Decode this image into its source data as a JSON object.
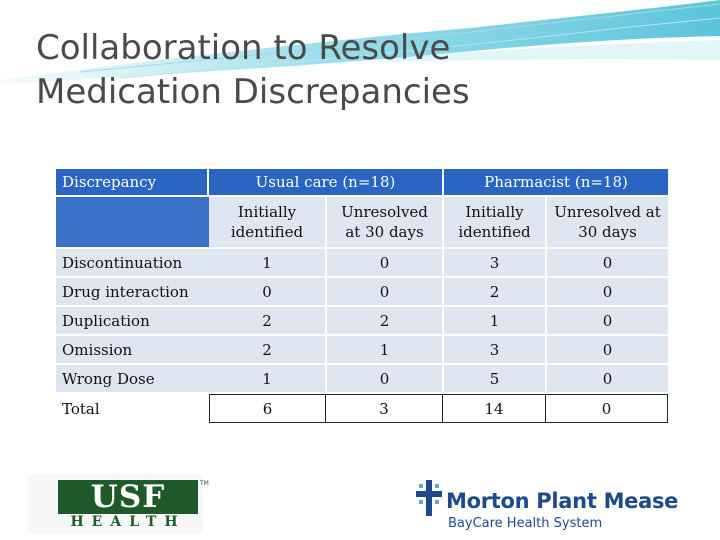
{
  "slide": {
    "title_line1": "Collaboration to Resolve",
    "title_line2": "Medication Discrepancies",
    "accent_color": "#2a65c4",
    "swoosh_color": "#7fd3e3"
  },
  "table": {
    "col_header": "Discrepancy",
    "groups": [
      "Usual care (n=18)",
      "Pharmacist (n=18)"
    ],
    "subheaders": [
      "Initially identified",
      "Unresolved at 30 days",
      "Initially identified",
      "Unresolved at 30 days"
    ],
    "rows": [
      {
        "label": "Discontinuation",
        "values": [
          "1",
          "0",
          "3",
          "0"
        ]
      },
      {
        "label": "Drug interaction",
        "values": [
          "0",
          "0",
          "2",
          "0"
        ]
      },
      {
        "label": "Duplication",
        "values": [
          "2",
          "2",
          "1",
          "0"
        ]
      },
      {
        "label": "Omission",
        "values": [
          "2",
          "1",
          "3",
          "0"
        ]
      },
      {
        "label": "Wrong Dose",
        "values": [
          "1",
          "0",
          "5",
          "0"
        ]
      },
      {
        "label": "Total",
        "values": [
          "6",
          "3",
          "14",
          "0"
        ]
      }
    ]
  },
  "logos": {
    "usf_letters": "USF",
    "usf_health": "HEALTH",
    "usf_tm": "TM",
    "usf_color": "#1e5a2a",
    "mpm_name": "Morton Plant Mease",
    "mpm_sub": "BayCare Health System",
    "mpm_color": "#1d4a8c"
  }
}
